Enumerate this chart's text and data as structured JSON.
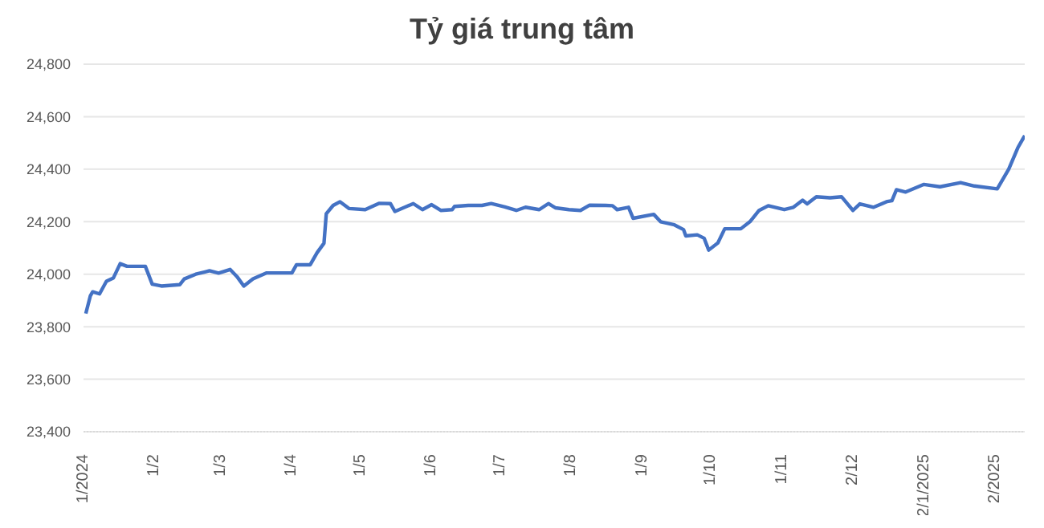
{
  "chart_data": {
    "type": "line",
    "title": "Tỷ giá trung tâm",
    "x": [
      "2024-01-02",
      "2024-01-04",
      "2024-01-05",
      "2024-01-08",
      "2024-01-11",
      "2024-01-14",
      "2024-01-17",
      "2024-01-20",
      "2024-01-28",
      "2024-01-31",
      "2024-02-04",
      "2024-02-12",
      "2024-02-14",
      "2024-02-19",
      "2024-02-25",
      "2024-02-29",
      "2024-03-05",
      "2024-03-08",
      "2024-03-11",
      "2024-03-15",
      "2024-03-21",
      "2024-03-25",
      "2024-04-01",
      "2024-04-03",
      "2024-04-09",
      "2024-04-12",
      "2024-04-15",
      "2024-04-16",
      "2024-04-19",
      "2024-04-22",
      "2024-04-26",
      "2024-05-03",
      "2024-05-09",
      "2024-05-14",
      "2024-05-16",
      "2024-05-24",
      "2024-05-28",
      "2024-06-01",
      "2024-06-05",
      "2024-06-10",
      "2024-06-11",
      "2024-06-17",
      "2024-06-23",
      "2024-06-27",
      "2024-07-03",
      "2024-07-08",
      "2024-07-12",
      "2024-07-18",
      "2024-07-22",
      "2024-07-25",
      "2024-07-31",
      "2024-08-05",
      "2024-08-09",
      "2024-08-16",
      "2024-08-19",
      "2024-08-21",
      "2024-08-26",
      "2024-08-28",
      "2024-09-06",
      "2024-09-09",
      "2024-09-15",
      "2024-09-19",
      "2024-09-20",
      "2024-09-25",
      "2024-09-28",
      "2024-09-30",
      "2024-10-04",
      "2024-10-07",
      "2024-10-14",
      "2024-10-18",
      "2024-10-22",
      "2024-10-26",
      "2024-11-02",
      "2024-11-06",
      "2024-11-10",
      "2024-11-12",
      "2024-11-16",
      "2024-11-22",
      "2024-11-27",
      "2024-12-02",
      "2024-12-05",
      "2024-12-11",
      "2024-12-17",
      "2024-12-19",
      "2024-12-21",
      "2024-12-25",
      "2025-01-02",
      "2025-01-09",
      "2025-01-18",
      "2025-01-24",
      "2025-02-03",
      "2025-02-08",
      "2025-02-12",
      "2025-02-15"
    ],
    "series": [
      {
        "color": "#4472c4",
        "values": [
          23850,
          23918,
          23933,
          23925,
          23973,
          23985,
          24040,
          24030,
          24030,
          23962,
          23955,
          23960,
          23982,
          24000,
          24013,
          24004,
          24018,
          23991,
          23955,
          23982,
          24005,
          24005,
          24005,
          24036,
          24036,
          24082,
          24118,
          24230,
          24262,
          24276,
          24250,
          24246,
          24270,
          24269,
          24239,
          24269,
          24246,
          24265,
          24243,
          24246,
          24258,
          24262,
          24262,
          24269,
          24256,
          24243,
          24255,
          24246,
          24269,
          24253,
          24246,
          24243,
          24263,
          24262,
          24261,
          24246,
          24255,
          24213,
          24228,
          24200,
          24188,
          24170,
          24146,
          24150,
          24137,
          24092,
          24119,
          24173,
          24173,
          24200,
          24243,
          24261,
          24246,
          24255,
          24282,
          24268,
          24295,
          24291,
          24295,
          24243,
          24268,
          24255,
          24277,
          24280,
          24322,
          24313,
          24342,
          24333,
          24349,
          24336,
          24325,
          24400,
          24482,
          24528
        ]
      }
    ],
    "xlim": [
      "2024-01-01",
      "2025-02-15"
    ],
    "xticks": [
      {
        "value": "2024-01-01",
        "label": "1/2024"
      },
      {
        "value": "2024-02-01",
        "label": "1/2"
      },
      {
        "value": "2024-03-01",
        "label": "1/3"
      },
      {
        "value": "2024-04-01",
        "label": "1/4"
      },
      {
        "value": "2024-05-01",
        "label": "1/5"
      },
      {
        "value": "2024-06-01",
        "label": "1/6"
      },
      {
        "value": "2024-07-01",
        "label": "1/7"
      },
      {
        "value": "2024-08-01",
        "label": "1/8"
      },
      {
        "value": "2024-09-01",
        "label": "1/9"
      },
      {
        "value": "2024-10-01",
        "label": "1/10"
      },
      {
        "value": "2024-11-01",
        "label": "1/11"
      },
      {
        "value": "2024-12-02",
        "label": "2/12"
      },
      {
        "value": "2025-01-02",
        "label": "2/1/2025"
      },
      {
        "value": "2025-02-02",
        "label": "2/2025"
      }
    ],
    "ylim": [
      23400,
      24800
    ],
    "yticks": [
      {
        "value": 23400,
        "label": "23,400"
      },
      {
        "value": 23600,
        "label": "23,600"
      },
      {
        "value": 23800,
        "label": "23,800"
      },
      {
        "value": 24000,
        "label": "24,000"
      },
      {
        "value": 24200,
        "label": "24,200"
      },
      {
        "value": 24400,
        "label": "24,400"
      },
      {
        "value": 24600,
        "label": "24,600"
      },
      {
        "value": 24800,
        "label": "24,800"
      }
    ],
    "grid": "y",
    "legend": false,
    "marker": "none",
    "line_style": "solid"
  }
}
